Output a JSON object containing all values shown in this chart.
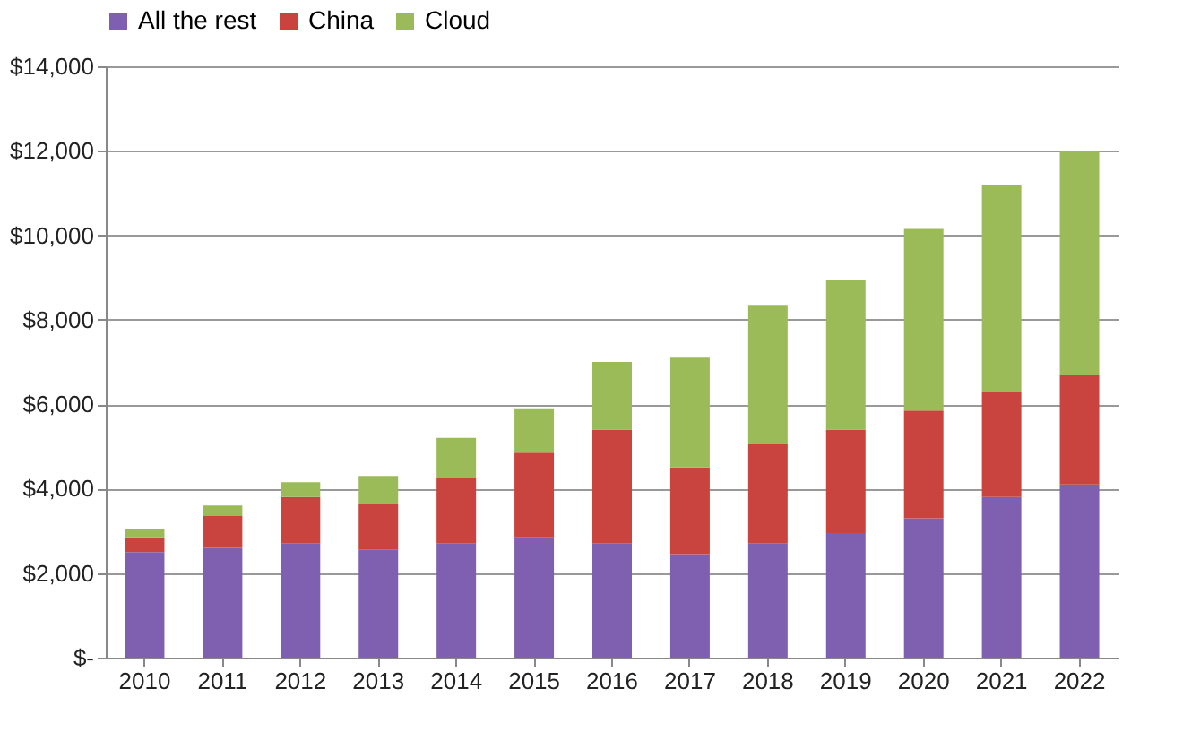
{
  "chart_data": {
    "type": "bar",
    "stacked": true,
    "categories": [
      "2010",
      "2011",
      "2012",
      "2013",
      "2014",
      "2015",
      "2016",
      "2017",
      "2018",
      "2019",
      "2020",
      "2021",
      "2022"
    ],
    "series": [
      {
        "name": "All the rest",
        "color": "#7f5fb0",
        "values": [
          2500,
          2600,
          2700,
          2550,
          2700,
          2850,
          2700,
          2450,
          2700,
          2950,
          3300,
          3800,
          4100
        ]
      },
      {
        "name": "China",
        "color": "#c9443f",
        "values": [
          350,
          750,
          1100,
          1100,
          1550,
          2000,
          2700,
          2050,
          2350,
          2450,
          2550,
          2500,
          2600
        ]
      },
      {
        "name": "Cloud",
        "color": "#9bbb59",
        "values": [
          200,
          250,
          350,
          650,
          950,
          1050,
          1600,
          2600,
          3300,
          3550,
          4300,
          4900,
          5300
        ]
      }
    ],
    "ylim": [
      0,
      14000
    ],
    "yticks": [
      {
        "value": 0,
        "label": "$-"
      },
      {
        "value": 2000,
        "label": "$2,000"
      },
      {
        "value": 4000,
        "label": "$4,000"
      },
      {
        "value": 6000,
        "label": "$6,000"
      },
      {
        "value": 8000,
        "label": "$8,000"
      },
      {
        "value": 10000,
        "label": "$10,000"
      },
      {
        "value": 12000,
        "label": "$12,000"
      },
      {
        "value": 14000,
        "label": "$14,000"
      }
    ],
    "grid": "y",
    "legend": "top"
  }
}
